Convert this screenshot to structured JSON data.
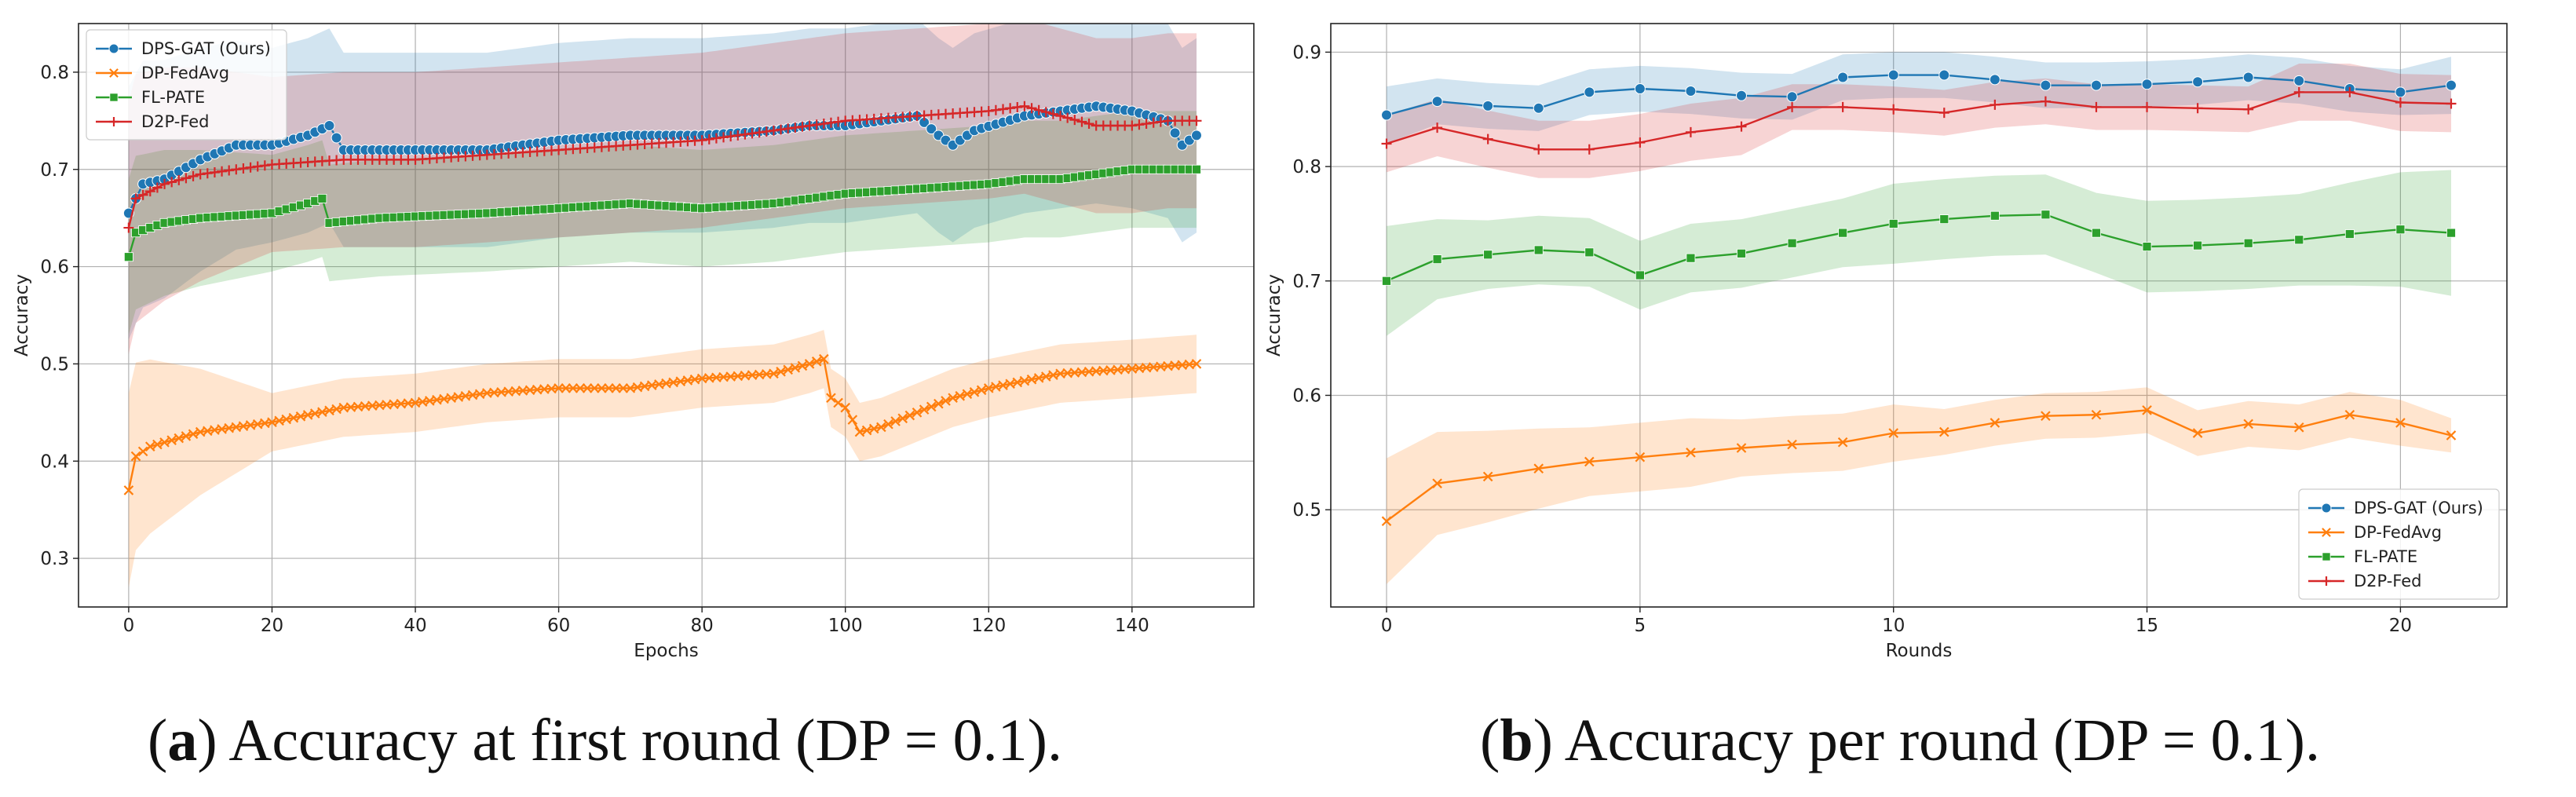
{
  "captions": [
    {
      "letter": "a",
      "text": ") Accuracy at first round (DP = 0.1)."
    },
    {
      "letter": "b",
      "text": ") Accuracy per round (DP = 0.1)."
    }
  ],
  "chart_data": [
    {
      "type": "line",
      "title": "",
      "xlabel": "Epochs",
      "ylabel": "Accuracy",
      "xlim": [
        -7,
        157
      ],
      "ylim": [
        0.25,
        0.85
      ],
      "xticks": [
        0,
        20,
        40,
        60,
        80,
        100,
        120,
        140
      ],
      "yticks": [
        0.3,
        0.4,
        0.5,
        0.6,
        0.7,
        0.8
      ],
      "grid": true,
      "legend_position": "top-left",
      "generated_from_anchors": true,
      "n_points": 150,
      "series": [
        {
          "name": "DPS-GAT (Ours)",
          "color": "#1f77b4",
          "marker": "circle",
          "anchors": [
            [
              0,
              0.655
            ],
            [
              2,
              0.685
            ],
            [
              5,
              0.69
            ],
            [
              10,
              0.71
            ],
            [
              15,
              0.725
            ],
            [
              20,
              0.725
            ],
            [
              25,
              0.735
            ],
            [
              28,
              0.745
            ],
            [
              30,
              0.72
            ],
            [
              40,
              0.72
            ],
            [
              50,
              0.72
            ],
            [
              60,
              0.73
            ],
            [
              70,
              0.735
            ],
            [
              80,
              0.735
            ],
            [
              90,
              0.74
            ],
            [
              95,
              0.745
            ],
            [
              100,
              0.745
            ],
            [
              110,
              0.755
            ],
            [
              113,
              0.735
            ],
            [
              115,
              0.725
            ],
            [
              118,
              0.74
            ],
            [
              125,
              0.755
            ],
            [
              130,
              0.76
            ],
            [
              135,
              0.765
            ],
            [
              140,
              0.76
            ],
            [
              145,
              0.75
            ],
            [
              147,
              0.725
            ],
            [
              149,
              0.735
            ]
          ],
          "band": [
            0.13,
            0.1
          ]
        },
        {
          "name": "DP-FedAvg",
          "color": "#ff7f0e",
          "marker": "x",
          "anchors": [
            [
              0,
              0.37
            ],
            [
              1,
              0.405
            ],
            [
              3,
              0.415
            ],
            [
              10,
              0.43
            ],
            [
              20,
              0.44
            ],
            [
              30,
              0.455
            ],
            [
              40,
              0.46
            ],
            [
              50,
              0.47
            ],
            [
              60,
              0.475
            ],
            [
              70,
              0.475
            ],
            [
              80,
              0.485
            ],
            [
              90,
              0.49
            ],
            [
              95,
              0.5
            ],
            [
              97,
              0.505
            ],
            [
              98,
              0.465
            ],
            [
              100,
              0.455
            ],
            [
              102,
              0.43
            ],
            [
              105,
              0.435
            ],
            [
              110,
              0.45
            ],
            [
              115,
              0.465
            ],
            [
              120,
              0.475
            ],
            [
              130,
              0.49
            ],
            [
              140,
              0.495
            ],
            [
              149,
              0.5
            ]
          ],
          "band": [
            0.1,
            0.03
          ]
        },
        {
          "name": "FL-PATE",
          "color": "#2ca02c",
          "marker": "square",
          "anchors": [
            [
              0,
              0.61
            ],
            [
              1,
              0.635
            ],
            [
              5,
              0.645
            ],
            [
              10,
              0.65
            ],
            [
              20,
              0.655
            ],
            [
              25,
              0.665
            ],
            [
              27,
              0.67
            ],
            [
              28,
              0.645
            ],
            [
              35,
              0.65
            ],
            [
              50,
              0.655
            ],
            [
              60,
              0.66
            ],
            [
              70,
              0.665
            ],
            [
              80,
              0.66
            ],
            [
              90,
              0.665
            ],
            [
              100,
              0.675
            ],
            [
              110,
              0.68
            ],
            [
              120,
              0.685
            ],
            [
              125,
              0.69
            ],
            [
              130,
              0.69
            ],
            [
              140,
              0.7
            ],
            [
              149,
              0.7
            ]
          ],
          "band": [
            0.08,
            0.06
          ]
        },
        {
          "name": "D2P-Fed",
          "color": "#d62728",
          "marker": "plus",
          "anchors": [
            [
              0,
              0.64
            ],
            [
              1,
              0.67
            ],
            [
              5,
              0.685
            ],
            [
              10,
              0.695
            ],
            [
              20,
              0.705
            ],
            [
              30,
              0.71
            ],
            [
              40,
              0.71
            ],
            [
              50,
              0.715
            ],
            [
              60,
              0.72
            ],
            [
              70,
              0.725
            ],
            [
              80,
              0.73
            ],
            [
              90,
              0.74
            ],
            [
              100,
              0.75
            ],
            [
              110,
              0.755
            ],
            [
              120,
              0.76
            ],
            [
              125,
              0.765
            ],
            [
              130,
              0.755
            ],
            [
              135,
              0.745
            ],
            [
              140,
              0.745
            ],
            [
              145,
              0.75
            ],
            [
              149,
              0.75
            ]
          ],
          "band": [
            0.13,
            0.09
          ]
        }
      ]
    },
    {
      "type": "line",
      "title": "",
      "xlabel": "Rounds",
      "ylabel": "Accuracy",
      "xlim": [
        -1.1,
        22.1
      ],
      "ylim": [
        0.415,
        0.925
      ],
      "xticks": [
        0,
        5,
        10,
        15,
        20
      ],
      "yticks": [
        0.5,
        0.6,
        0.7,
        0.8,
        0.9
      ],
      "grid": true,
      "legend_position": "bottom-right",
      "x": [
        0,
        1,
        2,
        3,
        4,
        5,
        6,
        7,
        8,
        9,
        10,
        11,
        12,
        13,
        14,
        15,
        16,
        17,
        18,
        19,
        20,
        21
      ],
      "series": [
        {
          "name": "DPS-GAT (Ours)",
          "color": "#1f77b4",
          "marker": "circle",
          "values": [
            0.845,
            0.857,
            0.853,
            0.851,
            0.865,
            0.868,
            0.866,
            0.862,
            0.861,
            0.878,
            0.88,
            0.88,
            0.876,
            0.871,
            0.871,
            0.872,
            0.874,
            0.878,
            0.875,
            0.868,
            0.865,
            0.871
          ],
          "band_halfwidth": [
            0.025,
            0.02,
            0.02,
            0.02,
            0.02,
            0.02,
            0.02,
            0.02,
            0.02,
            0.02,
            0.02,
            0.02,
            0.02,
            0.02,
            0.02,
            0.02,
            0.02,
            0.02,
            0.02,
            0.02,
            0.02,
            0.025
          ]
        },
        {
          "name": "DP-FedAvg",
          "color": "#ff7f0e",
          "marker": "x",
          "values": [
            0.49,
            0.523,
            0.529,
            0.536,
            0.542,
            0.546,
            0.55,
            0.554,
            0.557,
            0.559,
            0.567,
            0.568,
            0.576,
            0.582,
            0.583,
            0.587,
            0.567,
            0.575,
            0.572,
            0.583,
            0.576,
            0.565
          ],
          "band_halfwidth": [
            0.055,
            0.045,
            0.04,
            0.035,
            0.03,
            0.03,
            0.03,
            0.025,
            0.025,
            0.025,
            0.025,
            0.02,
            0.02,
            0.02,
            0.02,
            0.02,
            0.02,
            0.02,
            0.02,
            0.02,
            0.02,
            0.015
          ]
        },
        {
          "name": "FL-PATE",
          "color": "#2ca02c",
          "marker": "square",
          "values": [
            0.7,
            0.719,
            0.723,
            0.727,
            0.725,
            0.705,
            0.72,
            0.724,
            0.733,
            0.742,
            0.75,
            0.754,
            0.757,
            0.758,
            0.742,
            0.73,
            0.731,
            0.733,
            0.736,
            0.741,
            0.745,
            0.742
          ],
          "band_halfwidth": [
            0.048,
            0.035,
            0.03,
            0.03,
            0.03,
            0.03,
            0.03,
            0.03,
            0.03,
            0.03,
            0.035,
            0.035,
            0.035,
            0.035,
            0.035,
            0.04,
            0.04,
            0.04,
            0.04,
            0.045,
            0.05,
            0.055
          ]
        },
        {
          "name": "D2P-Fed",
          "color": "#d62728",
          "marker": "plus",
          "values": [
            0.82,
            0.834,
            0.824,
            0.815,
            0.815,
            0.821,
            0.83,
            0.835,
            0.852,
            0.852,
            0.85,
            0.847,
            0.854,
            0.857,
            0.852,
            0.852,
            0.851,
            0.85,
            0.865,
            0.865,
            0.856,
            0.855
          ],
          "band_halfwidth": [
            0.025,
            0.025,
            0.025,
            0.025,
            0.025,
            0.025,
            0.025,
            0.025,
            0.02,
            0.02,
            0.02,
            0.02,
            0.02,
            0.02,
            0.02,
            0.02,
            0.02,
            0.02,
            0.025,
            0.025,
            0.025,
            0.025
          ]
        }
      ]
    }
  ]
}
